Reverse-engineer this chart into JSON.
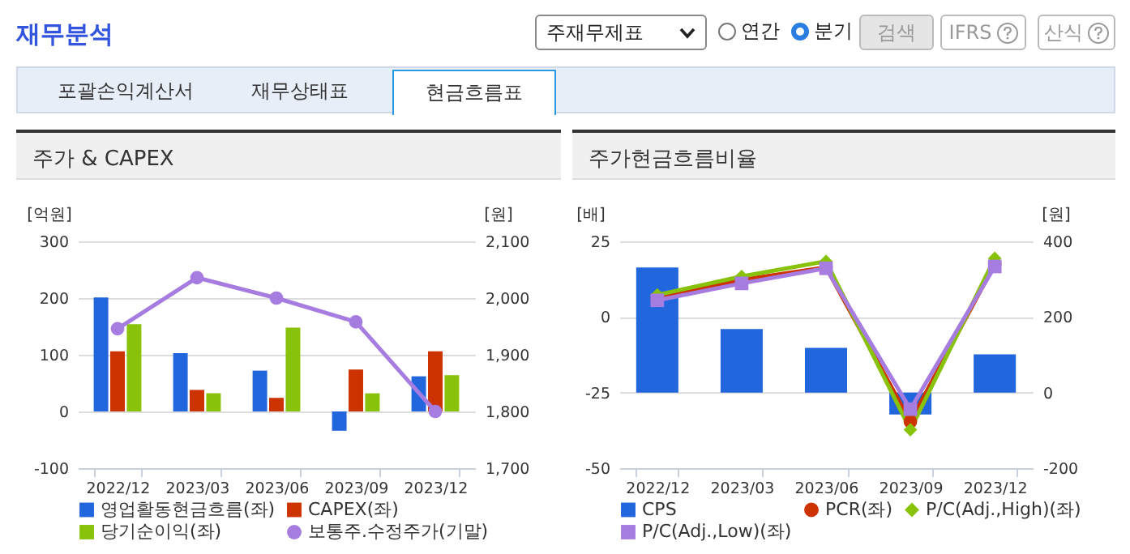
{
  "chart_data": [
    {
      "type": "other",
      "title": "재무분석",
      "annotations": [
        "주재무제표",
        "연간",
        "분기",
        "검색",
        "IFRS",
        "산식",
        "포괄손익계산서",
        "재무상태표",
        "현금흐름표"
      ]
    },
    {
      "type": "bar",
      "title": "주가 & CAPEX",
      "categories": [
        "2022/12",
        "2023/03",
        "2023/06",
        "2023/09",
        "2023/12"
      ],
      "ylabel": "[억원]",
      "y2label": "[원]",
      "ylim": [
        -100,
        300
      ],
      "yticks": [
        -100,
        0,
        100,
        200,
        300
      ],
      "y2lim": [
        1700,
        2100
      ],
      "y2ticks": [
        {
          "value": 1700,
          "label": "1,700"
        },
        {
          "value": 1800,
          "label": "1,800"
        },
        {
          "value": 1900,
          "label": "1,900"
        },
        {
          "value": 2000,
          "label": "2,000"
        },
        {
          "value": 2100,
          "label": "2,100"
        }
      ],
      "grid": "y",
      "legend": "bottom",
      "series": [
        {
          "name": "영업활동현금흐름(좌)",
          "type": "bar",
          "color": "#2266dd",
          "values": [
            201,
            103,
            72,
            -34,
            62
          ]
        },
        {
          "name": "CAPEX(좌)",
          "type": "bar",
          "color": "#cc3300",
          "values": [
            106,
            38,
            24,
            74,
            106
          ]
        },
        {
          "name": "당기순이익(좌)",
          "type": "bar",
          "color": "#88c20b",
          "values": [
            154,
            32,
            148,
            32,
            64
          ]
        },
        {
          "name": "보통주.수정주가(기말)",
          "type": "line",
          "axis": "y2",
          "marker": "circle",
          "color": "#a67ce0",
          "values": [
            1946,
            2036,
            2000,
            1958,
            1800
          ]
        }
      ]
    },
    {
      "type": "bar",
      "title": "주가현금흐름비율",
      "categories": [
        "2022/12",
        "2023/03",
        "2023/06",
        "2023/09",
        "2023/12"
      ],
      "ylabel": "[배]",
      "y2label": "[원]",
      "ylim": [
        -50,
        25
      ],
      "yticks": [
        -50,
        -25,
        0,
        25
      ],
      "y2lim": [
        -200,
        400
      ],
      "y2ticks": [
        -200,
        0,
        200,
        400
      ],
      "grid": "y",
      "legend": "bottom",
      "series": [
        {
          "name": "CPS",
          "type": "bar",
          "axis": "y2",
          "color": "#2266dd",
          "values": [
            331,
            168,
            118,
            -58,
            101
          ]
        },
        {
          "name": "PCR(좌)",
          "type": "line",
          "marker": "circle",
          "color": "#cc3300",
          "values": [
            6.3,
            12.3,
            16.4,
            -34.6,
            17.5
          ]
        },
        {
          "name": "P/C(Adj.,High)(좌)",
          "type": "line",
          "marker": "diamond",
          "color": "#88c20b",
          "values": [
            7.3,
            13.4,
            18.4,
            -37.3,
            19.4
          ]
        },
        {
          "name": "P/C(Adj.,Low)(좌)",
          "type": "line",
          "marker": "square",
          "color": "#a67ce0",
          "values": [
            5.5,
            11.1,
            16.1,
            -30.5,
            16.7
          ]
        }
      ]
    }
  ]
}
